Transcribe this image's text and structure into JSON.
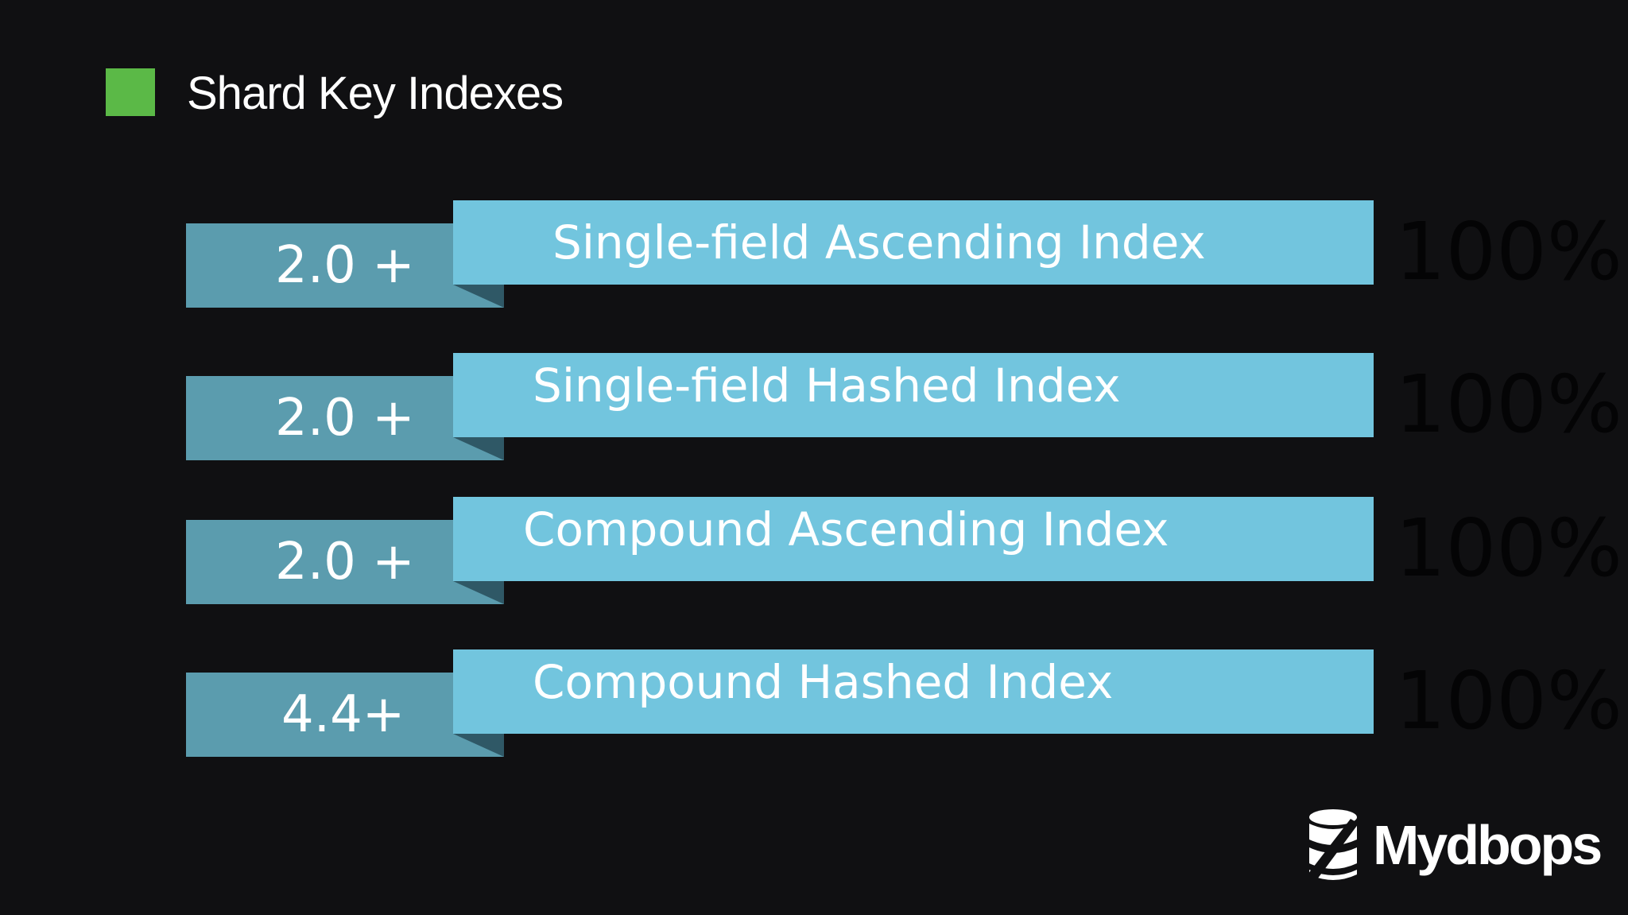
{
  "title": "Shard Key Indexes",
  "accent_color": "#5bb947",
  "bar_color": "#72c5de",
  "version_color": "#5b9cae",
  "rows": [
    {
      "version": "2.0 +",
      "label": "Single-field Ascending Index",
      "percent": "100%"
    },
    {
      "version": "2.0 +",
      "label": "Single-field Hashed Index",
      "percent": "100%"
    },
    {
      "version": "2.0 +",
      "label": "Compound Ascending Index",
      "percent": "100%"
    },
    {
      "version": "4.4+",
      "label": "Compound Hashed Index",
      "percent": "100%"
    }
  ],
  "logo": {
    "icon": "database-icon",
    "text": "Mydbops"
  }
}
